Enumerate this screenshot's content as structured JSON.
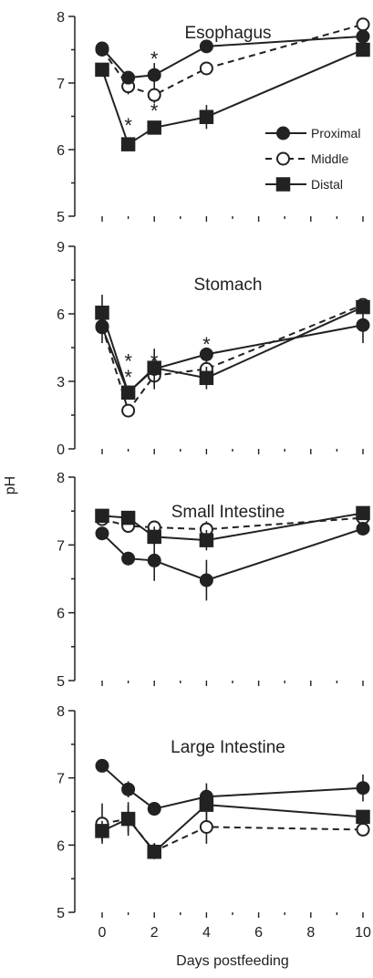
{
  "chart_data": {
    "type": "line",
    "ylabel": "pH",
    "xlabel": "Days postfeeding",
    "x_ticks": [
      "0",
      "2",
      "4",
      "6",
      "8",
      "10"
    ],
    "legend": [
      {
        "name": "Proximal",
        "marker": "filled-circle",
        "line": "solid"
      },
      {
        "name": "Middle",
        "marker": "open-circle",
        "line": "dashed"
      },
      {
        "name": "Distal",
        "marker": "filled-square",
        "line": "solid"
      }
    ],
    "panels": [
      {
        "title": "Esophagus",
        "ylim": [
          5,
          8
        ],
        "y_ticks": [
          "5",
          "6",
          "7",
          "8"
        ],
        "x": [
          0,
          1,
          2,
          4,
          10
        ],
        "series": [
          {
            "name": "Proximal",
            "values": [
              7.52,
              7.08,
              7.12,
              7.55,
              7.7
            ],
            "err": [
              0.05,
              0.08,
              0.18,
              0.05,
              0.1
            ]
          },
          {
            "name": "Middle",
            "values": [
              7.5,
              6.95,
              6.82,
              7.22,
              7.88
            ],
            "err": [
              0.05,
              0.12,
              0.12,
              0.06,
              0.05
            ]
          },
          {
            "name": "Distal",
            "values": [
              7.2,
              6.08,
              6.33,
              6.49,
              7.5
            ],
            "err": [
              0.05,
              0.05,
              0.08,
              0.18,
              0.06
            ]
          }
        ],
        "annotations": [
          {
            "text": "*",
            "x": 2,
            "y": 7.45
          },
          {
            "text": "*",
            "x": 1,
            "y": 6.45
          },
          {
            "text": "*",
            "x": 2,
            "y": 6.67
          }
        ]
      },
      {
        "title": "Stomach",
        "ylim": [
          0,
          9
        ],
        "y_ticks": [
          "0",
          "3",
          "6",
          "9"
        ],
        "x": [
          0,
          1,
          2,
          4,
          10
        ],
        "series": [
          {
            "name": "Proximal",
            "values": [
              5.4,
              2.5,
              3.55,
              4.2,
              5.5
            ],
            "err": [
              0.7,
              0.3,
              0.9,
              0.3,
              0.8
            ]
          },
          {
            "name": "Middle",
            "values": [
              5.45,
              1.7,
              3.25,
              3.55,
              6.4
            ],
            "err": [
              0.3,
              0.25,
              0.5,
              0.4,
              0.2
            ]
          },
          {
            "name": "Distal",
            "values": [
              6.05,
              2.5,
              3.6,
              3.15,
              6.3
            ],
            "err": [
              0.8,
              0.3,
              0.3,
              0.5,
              0.2
            ]
          }
        ],
        "annotations": [
          {
            "text": "*",
            "x": 1,
            "y": 4.15
          },
          {
            "text": "*",
            "x": 1,
            "y": 3.45
          },
          {
            "text": "*",
            "x": 1,
            "y": 2.75
          },
          {
            "text": "*",
            "x": 2,
            "y": 4.15
          },
          {
            "text": "*",
            "x": 4,
            "y": 4.9
          }
        ]
      },
      {
        "title": "Small Intestine",
        "ylim": [
          5,
          8
        ],
        "y_ticks": [
          "5",
          "6",
          "7",
          "8"
        ],
        "x": [
          0,
          1,
          2,
          4,
          10
        ],
        "series": [
          {
            "name": "Proximal",
            "values": [
              7.17,
              6.8,
              6.77,
              6.48,
              7.24
            ],
            "err": [
              0.05,
              0.1,
              0.3,
              0.3,
              0.06
            ]
          },
          {
            "name": "Middle",
            "values": [
              7.38,
              7.28,
              7.26,
              7.23,
              7.4
            ],
            "err": [
              0.07,
              0.08,
              0.06,
              0.12,
              0.05
            ]
          },
          {
            "name": "Distal",
            "values": [
              7.43,
              7.4,
              7.12,
              7.07,
              7.47
            ],
            "err": [
              0.1,
              0.06,
              0.15,
              0.15,
              0.06
            ]
          }
        ],
        "annotations": []
      },
      {
        "title": "Large Intestine",
        "ylim": [
          5,
          8
        ],
        "y_ticks": [
          "5",
          "6",
          "7",
          "8"
        ],
        "x": [
          0,
          1,
          2,
          4,
          10
        ],
        "series": [
          {
            "name": "Proximal",
            "values": [
              7.18,
              6.83,
              6.54,
              6.72,
              6.85
            ],
            "err": [
              0.05,
              0.12,
              0.1,
              0.2,
              0.2
            ]
          },
          {
            "name": "Middle",
            "values": [
              6.32,
              6.39,
              5.91,
              6.27,
              6.23
            ],
            "err": [
              0.3,
              0.25,
              0.12,
              0.25,
              0.06
            ]
          },
          {
            "name": "Distal",
            "values": [
              6.21,
              6.39,
              5.9,
              6.6,
              6.42
            ],
            "err": [
              0.15,
              0.2,
              0.1,
              0.25,
              0.1
            ]
          }
        ],
        "annotations": []
      }
    ]
  }
}
